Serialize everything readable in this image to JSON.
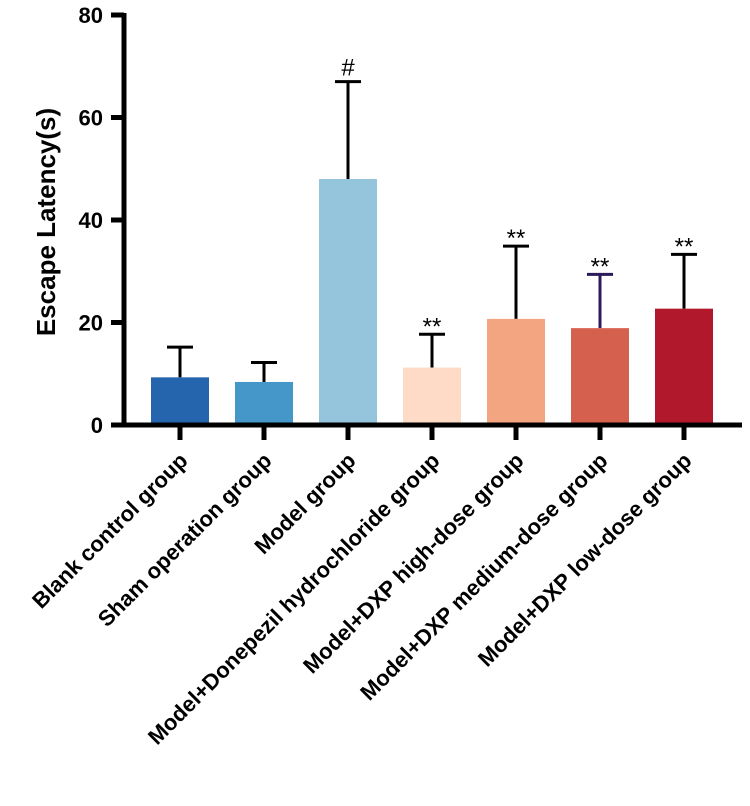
{
  "chart_data": {
    "type": "bar",
    "title": "",
    "xlabel": "",
    "ylabel": "Escape Latency(s)",
    "ylim": [
      0,
      80
    ],
    "yticks": [
      0,
      20,
      40,
      60,
      80
    ],
    "grid": false,
    "legend": "none",
    "categories": [
      "Blank control group",
      "Sham operation group",
      "Model group",
      "Model+Donepezil hydrochloride group",
      "Model+DXP high-dose group",
      "Model+DXP medium-dose group",
      "Model+DXP low-dose group"
    ],
    "values": [
      9.3,
      8.4,
      48,
      11.2,
      20.7,
      18.9,
      22.7
    ],
    "errors": [
      5.9,
      3.8,
      19,
      6.5,
      14.2,
      10.5,
      10.6
    ],
    "annotations": [
      "",
      "",
      "#",
      "**",
      "**",
      "**",
      "**"
    ],
    "colors": [
      "#2565ad",
      "#4596c9",
      "#94c5dc",
      "#fddbc6",
      "#f3a481",
      "#d6604e",
      "#b2182b"
    ],
    "error_colors": [
      "#000000",
      "#000000",
      "#000000",
      "#000000",
      "#000000",
      "#2b1a5c",
      "#000000"
    ]
  }
}
